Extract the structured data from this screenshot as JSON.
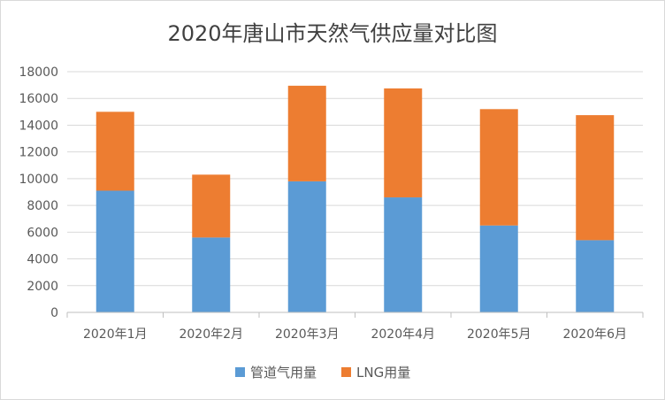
{
  "chart_data": {
    "type": "bar",
    "stacked": true,
    "title": "2020年唐山市天然气供应量对比图",
    "categories": [
      "2020年1月",
      "2020年2月",
      "2020年3月",
      "2020年4月",
      "2020年5月",
      "2020年6月"
    ],
    "series": [
      {
        "name": "管道气用量",
        "color": "#5b9bd5",
        "values": [
          9100,
          5600,
          9800,
          8600,
          6500,
          5400
        ]
      },
      {
        "name": "LNG用量",
        "color": "#ed7d31",
        "values": [
          5900,
          4700,
          7150,
          8150,
          8700,
          9350
        ]
      }
    ],
    "ylim": [
      0,
      18000
    ],
    "yticks": [
      0,
      2000,
      4000,
      6000,
      8000,
      10000,
      12000,
      14000,
      16000,
      18000
    ],
    "grid": true,
    "legend": "bottom"
  }
}
